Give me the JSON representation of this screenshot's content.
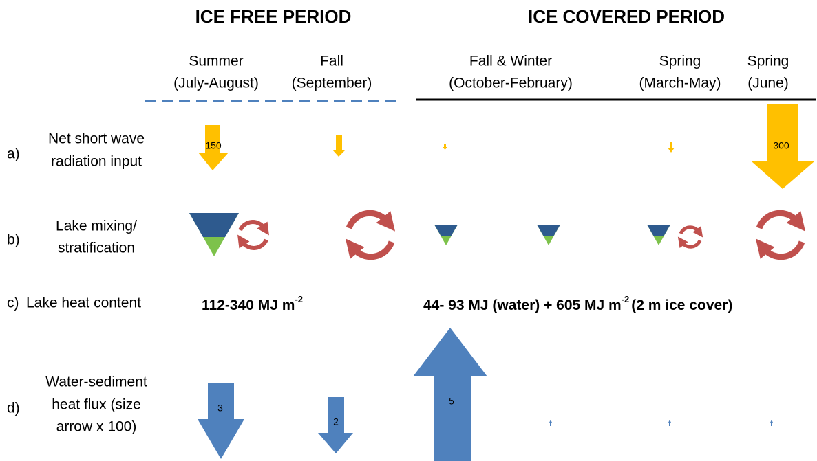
{
  "headers": [
    "ICE FREE PERIOD",
    "ICE COVERED PERIOD"
  ],
  "columns": [
    {
      "season": "Summer",
      "months": "(July-August)"
    },
    {
      "season": "Fall",
      "months": "(September)"
    },
    {
      "season": "Fall & Winter",
      "months": "(October-February)"
    },
    {
      "season": "Spring",
      "months": "(March-May)"
    },
    {
      "season": "Spring",
      "months": "(June)"
    }
  ],
  "rows": [
    {
      "letter": "a)",
      "label": [
        "Net short wave",
        "radiation input"
      ]
    },
    {
      "letter": "b)",
      "label": [
        "Lake mixing/",
        "stratification"
      ]
    },
    {
      "letter": "c)",
      "label": [
        "Lake heat content"
      ]
    },
    {
      "letter": "d)",
      "label": [
        "Water-sediment",
        "heat flux (size",
        "arrow x 100)"
      ]
    }
  ],
  "radiation_labels": [
    "150",
    "300"
  ],
  "flux_labels": [
    "3",
    "2",
    "5"
  ],
  "heat_content": {
    "ice_free": {
      "text": "112-340 MJ m",
      "sup": "-2"
    },
    "ice_covered": {
      "text": "44- 93 MJ (water) + 605 MJ m",
      "sup": "-2",
      "tail": "(2 m ice cover)"
    }
  }
}
